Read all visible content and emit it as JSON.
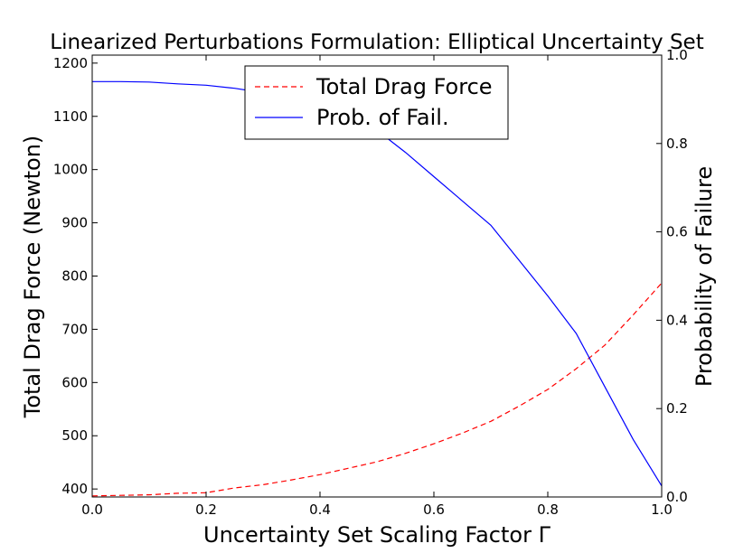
{
  "chart_data": {
    "type": "line",
    "title": "Linearized Perturbations Formulation: Elliptical Uncertainty Set",
    "xlabel": "Uncertainty Set Scaling Factor Γ",
    "ylabel_left": "Total Drag Force  (Newton)",
    "ylabel_right": "Probability of Failure",
    "xlim": [
      0.0,
      1.0
    ],
    "ylim_left": [
      385,
      1215
    ],
    "ylim_right": [
      0.0,
      1.0
    ],
    "x_ticks": [
      "0.0",
      "0.2",
      "0.4",
      "0.6",
      "0.8",
      "1.0"
    ],
    "y_left_ticks": [
      "400",
      "500",
      "600",
      "700",
      "800",
      "900",
      "1000",
      "1100",
      "1200"
    ],
    "y_right_ticks": [
      "0.0",
      "0.2",
      "0.4",
      "0.6",
      "0.8",
      "1.0"
    ],
    "legend_position": "top-center",
    "grid": false,
    "series": [
      {
        "name": "Total Drag Force",
        "axis": "left",
        "color": "#ff0000",
        "style": "dashed",
        "x": [
          0.0,
          0.05,
          0.1,
          0.15,
          0.2,
          0.25,
          0.3,
          0.35,
          0.4,
          0.45,
          0.5,
          0.55,
          0.6,
          0.65,
          0.7,
          0.75,
          0.8,
          0.85,
          0.9,
          0.95,
          1.0
        ],
        "y": [
          387,
          388,
          389,
          392,
          393,
          402,
          408,
          417,
          427,
          439,
          451,
          467,
          485,
          505,
          527,
          556,
          587,
          626,
          670,
          727,
          787
        ]
      },
      {
        "name": "Prob. of Fail.",
        "axis": "right",
        "color": "#0000ff",
        "style": "solid",
        "x": [
          0.0,
          0.05,
          0.1,
          0.15,
          0.2,
          0.25,
          0.3,
          0.35,
          0.4,
          0.45,
          0.5,
          0.55,
          0.6,
          0.65,
          0.7,
          0.75,
          0.8,
          0.85,
          0.9,
          0.95,
          1.0
        ],
        "y": [
          0.94,
          0.94,
          0.939,
          0.935,
          0.932,
          0.925,
          0.915,
          0.903,
          0.89,
          0.872,
          0.83,
          0.78,
          0.725,
          0.67,
          0.615,
          0.535,
          0.455,
          0.37,
          0.25,
          0.13,
          0.025
        ]
      }
    ]
  }
}
